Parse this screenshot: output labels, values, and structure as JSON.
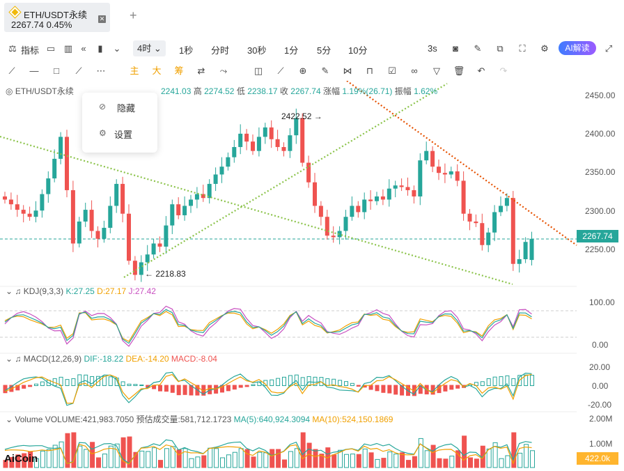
{
  "tab": {
    "title": "ETH/USDT永续",
    "price": "2267.74",
    "change": "0.45%"
  },
  "toolbar": {
    "indicator_label": "指标",
    "timeframe_selected": "4时",
    "timeframes": [
      "1秒",
      "分时",
      "30秒",
      "1分",
      "5分",
      "10分"
    ],
    "refresh": "3s",
    "ai_label": "AI解读"
  },
  "drawing_tools": {
    "main": "主",
    "big": "大",
    "chip": "筹"
  },
  "main_legend": {
    "symbol": "ETH/USDT永续",
    "open_val": "2241.03",
    "high_label": "高",
    "high_val": "2274.52",
    "low_label": "低",
    "low_val": "2238.17",
    "close_label": "收",
    "close_val": "2267.74",
    "amp_label": "涨幅",
    "amp_val": "1.19%(26.71)",
    "swing_label": "振幅",
    "swing_val": "1.62%"
  },
  "popup": {
    "hide": "隐藏",
    "settings": "设置"
  },
  "price_axis": [
    "2450.00",
    "2400.00",
    "2350.00",
    "2300.00",
    "2250.00"
  ],
  "last_price": "2267.74",
  "annotations": {
    "high": "2422.52 →",
    "low": "← 2218.83"
  },
  "kdj": {
    "name": "KDJ(9,3,3)",
    "k": "K:27.25",
    "d": "D:27.17",
    "j": "J:27.42",
    "axis": [
      "100.00",
      "0.00"
    ]
  },
  "macd": {
    "name": "MACD(12,26,9)",
    "dif": "DIF:-18.22",
    "dea": "DEA:-14.20",
    "macd": "MACD:-8.04",
    "axis": [
      "20.00",
      "0.00",
      "-20.00"
    ]
  },
  "volume": {
    "name": "Volume",
    "vol": "VOLUME:421,983.7050",
    "est": "预估成交量:581,712.1723",
    "ma5": "MA(5):640,924.3094",
    "ma10": "MA(10):524,150.1869",
    "axis": [
      "2.00M",
      "1.00M"
    ],
    "badge": "422.0k"
  },
  "watermark": "AiCoin",
  "colors": {
    "up": "#26a69a",
    "down": "#ef5350",
    "trend_green": "#8bc34a",
    "trend_red": "#e65100",
    "ai": "#5b6bff"
  },
  "chart_data": {
    "type": "candlestick",
    "closes": [
      2318,
      2312,
      2305,
      2300,
      2296,
      2304,
      2325,
      2345,
      2370,
      2398,
      2330,
      2262,
      2290,
      2305,
      2278,
      2268,
      2282,
      2310,
      2338,
      2300,
      2240,
      2222,
      2238,
      2248,
      2262,
      2258,
      2285,
      2312,
      2298,
      2310,
      2318,
      2325,
      2320,
      2338,
      2350,
      2360,
      2372,
      2385,
      2402,
      2392,
      2380,
      2398,
      2410,
      2395,
      2385,
      2380,
      2400,
      2422,
      2365,
      2340,
      2310,
      2296,
      2272,
      2270,
      2278,
      2296,
      2310,
      2302,
      2318,
      2316,
      2322,
      2318,
      2332,
      2336,
      2334,
      2330,
      2322,
      2368,
      2380,
      2360,
      2352,
      2350,
      2354,
      2342,
      2300,
      2290,
      2288,
      2260,
      2276,
      2302,
      2310,
      2320,
      2236,
      2242,
      2264,
      2268
    ],
    "opens": [
      2322,
      2318,
      2312,
      2305,
      2300,
      2296,
      2304,
      2325,
      2345,
      2370,
      2398,
      2330,
      2262,
      2290,
      2305,
      2278,
      2268,
      2282,
      2310,
      2338,
      2300,
      2240,
      2222,
      2238,
      2248,
      2262,
      2258,
      2285,
      2312,
      2298,
      2310,
      2318,
      2325,
      2320,
      2338,
      2350,
      2360,
      2372,
      2385,
      2402,
      2392,
      2380,
      2398,
      2410,
      2395,
      2385,
      2380,
      2400,
      2422,
      2365,
      2340,
      2310,
      2296,
      2272,
      2270,
      2278,
      2296,
      2310,
      2302,
      2318,
      2316,
      2322,
      2318,
      2332,
      2336,
      2334,
      2330,
      2322,
      2368,
      2380,
      2360,
      2352,
      2350,
      2354,
      2342,
      2300,
      2290,
      2288,
      2260,
      2276,
      2302,
      2310,
      2320,
      2236,
      2242,
      2241
    ],
    "price_range": [
      2210,
      2465
    ]
  }
}
